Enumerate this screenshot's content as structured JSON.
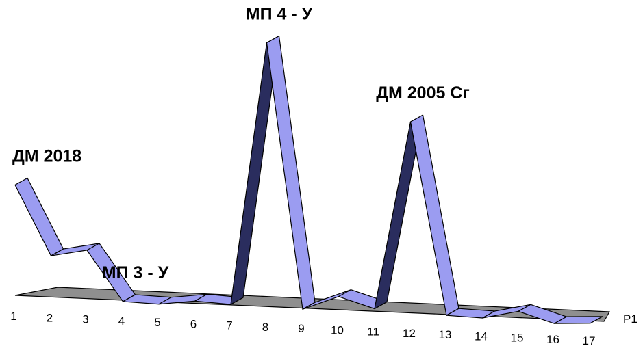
{
  "chart_data": {
    "type": "line",
    "style": "3d-ribbon",
    "x": [
      "1",
      "2",
      "3",
      "4",
      "5",
      "6",
      "7",
      "8",
      "9",
      "10",
      "11",
      "12",
      "13",
      "14",
      "15",
      "16",
      "17"
    ],
    "series": [
      {
        "name": "P1",
        "values": [
          3.3,
          1.35,
          1.55,
          0.15,
          0.12,
          0.25,
          0.2,
          7.6,
          0.15,
          0.55,
          0.25,
          5.55,
          0.15,
          0.12,
          0.35,
          0.05,
          0.1
        ]
      }
    ],
    "annotations": [
      {
        "text": "ДМ 2018",
        "x": "1"
      },
      {
        "text": "МП 3 - У",
        "x": "4"
      },
      {
        "text": "МП 4 - У",
        "x": "8"
      },
      {
        "text": "ДМ 2005 Сг",
        "x": "12"
      }
    ],
    "grid": false,
    "colors": {
      "ribbon_top": "#9b9cf1",
      "ribbon_side": "#2a2d5e",
      "floor": "#8f8f8f",
      "outline": "#000000"
    }
  }
}
